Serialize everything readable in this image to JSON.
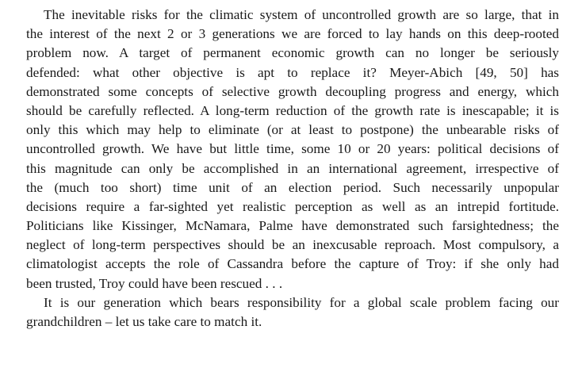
{
  "paragraphs": [
    {
      "lines": [
        "The inevitable risks for the climatic system of uncontrolled growth are so large, that in",
        "the interest of the next 2 or 3 generations we are forced to lay hands on this deep-rooted",
        "problem now. A target of permanent economic growth can no longer be seriously",
        "defended: what other objective is apt to replace it? Meyer-Abich [49, 50] has",
        "demonstrated some concepts of selective growth decoupling progress and energy, which",
        "should be carefully reflected. A long-term reduction of the growth rate is inescapable; it is",
        "only this which may help to eliminate (or at least to postpone) the unbearable risks of",
        "uncontrolled growth. We have but little time, some 10 or 20 years: political decisions of",
        "this magnitude can only be accomplished in an international agreement, irrespective of",
        "the (much too short) time unit of an election period. Such necessarily unpopular",
        "decisions require a far-sighted yet realistic perception as well as an intrepid fortitude.",
        "Politicians like Kissinger, McNamara, Palme have demonstrated such farsightedness; the",
        "neglect of long-term perspectives should be an inexcusable reproach. Most compulsory, a",
        "climatologist accepts the role of Cassandra before the capture of Troy: if she only had",
        "been trusted, Troy could have been rescued . . ."
      ]
    },
    {
      "lines": [
        "It is our generation which bears responsibility for a global scale problem facing our",
        "grandchildren – let us take care to match it."
      ]
    }
  ]
}
